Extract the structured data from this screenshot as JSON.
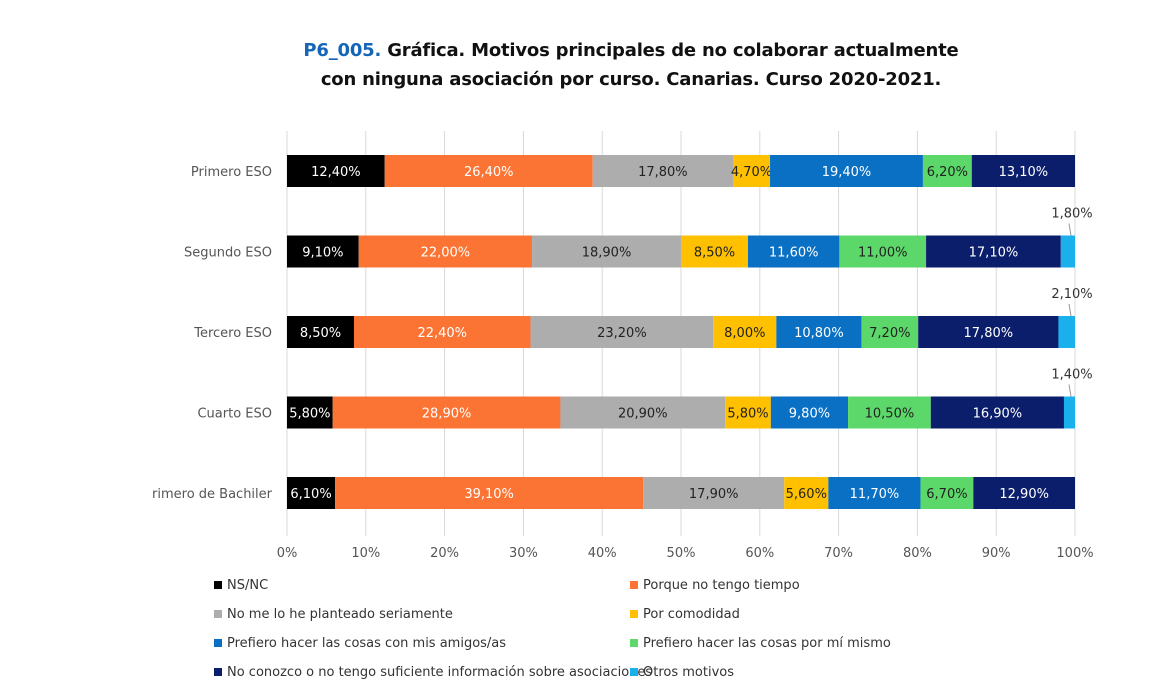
{
  "title": {
    "code": "P6_005.",
    "line1": "Gráfica. Motivos principales de no colaborar actualmente",
    "line2": "con ninguna asociación por curso. Canarias. Curso 2020-2021."
  },
  "chart_data": {
    "type": "bar",
    "orientation": "horizontal",
    "stacked": "percent",
    "categories": [
      "Primero ESO",
      "Segundo ESO",
      "Tercero ESO",
      "Cuarto ESO",
      "rimero de Bachiler"
    ],
    "xlim": [
      0,
      100
    ],
    "x_ticks": [
      "0%",
      "10%",
      "20%",
      "30%",
      "40%",
      "50%",
      "60%",
      "70%",
      "80%",
      "90%",
      "100%"
    ],
    "grid": "vertical",
    "legend_position": "bottom",
    "series": [
      {
        "name": "NS/NC",
        "color": "#000000",
        "label_color": "#ffffff",
        "values": [
          12.4,
          9.1,
          8.5,
          5.8,
          6.1
        ],
        "labels": [
          "12,40%",
          "9,10%",
          "8,50%",
          "5,80%",
          "6,10%"
        ]
      },
      {
        "name": "Porque no tengo tiempo",
        "color": "#fb7433",
        "label_color": "#ffffff",
        "values": [
          26.4,
          22.0,
          22.4,
          28.9,
          39.1
        ],
        "labels": [
          "26,40%",
          "22,00%",
          "22,40%",
          "28,90%",
          "39,10%"
        ]
      },
      {
        "name": "No me lo he planteado seriamente",
        "color": "#adadad",
        "label_color": "#222222",
        "values": [
          17.8,
          18.9,
          23.2,
          20.9,
          17.9
        ],
        "labels": [
          "17,80%",
          "18,90%",
          "23,20%",
          "20,90%",
          "17,90%"
        ]
      },
      {
        "name": "Por comodidad",
        "color": "#ffc000",
        "label_color": "#222222",
        "values": [
          4.7,
          8.5,
          8.0,
          5.8,
          5.6
        ],
        "labels": [
          "4,70%",
          "8,50%",
          "8,00%",
          "5,80%",
          "5,60%"
        ]
      },
      {
        "name": "Prefiero hacer las cosas con mis amigos/as",
        "color": "#0a70c4",
        "label_color": "#ffffff",
        "values": [
          19.4,
          11.6,
          10.8,
          9.8,
          11.7
        ],
        "labels": [
          "19,40%",
          "11,60%",
          "10,80%",
          "9,80%",
          "11,70%"
        ]
      },
      {
        "name": "Prefiero hacer las cosas por mí mismo",
        "color": "#5cd86a",
        "label_color": "#222222",
        "values": [
          6.2,
          11.0,
          7.2,
          10.5,
          6.7
        ],
        "labels": [
          "6,20%",
          "11,00%",
          "7,20%",
          "10,50%",
          "6,70%"
        ]
      },
      {
        "name": "No conozco o no tengo suficiente información sobre asociaciones",
        "color": "#0b1e6b",
        "label_color": "#ffffff",
        "values": [
          13.1,
          17.1,
          17.8,
          16.9,
          12.9
        ],
        "labels": [
          "13,10%",
          "17,10%",
          "17,80%",
          "16,90%",
          "12,90%"
        ]
      },
      {
        "name": "Otros motivos",
        "color": "#1ab0ec",
        "label_color": "#222222",
        "values": [
          0,
          1.8,
          2.1,
          1.4,
          0
        ],
        "labels": [
          "",
          "1,80%",
          "2,10%",
          "1,40%",
          ""
        ]
      }
    ]
  }
}
